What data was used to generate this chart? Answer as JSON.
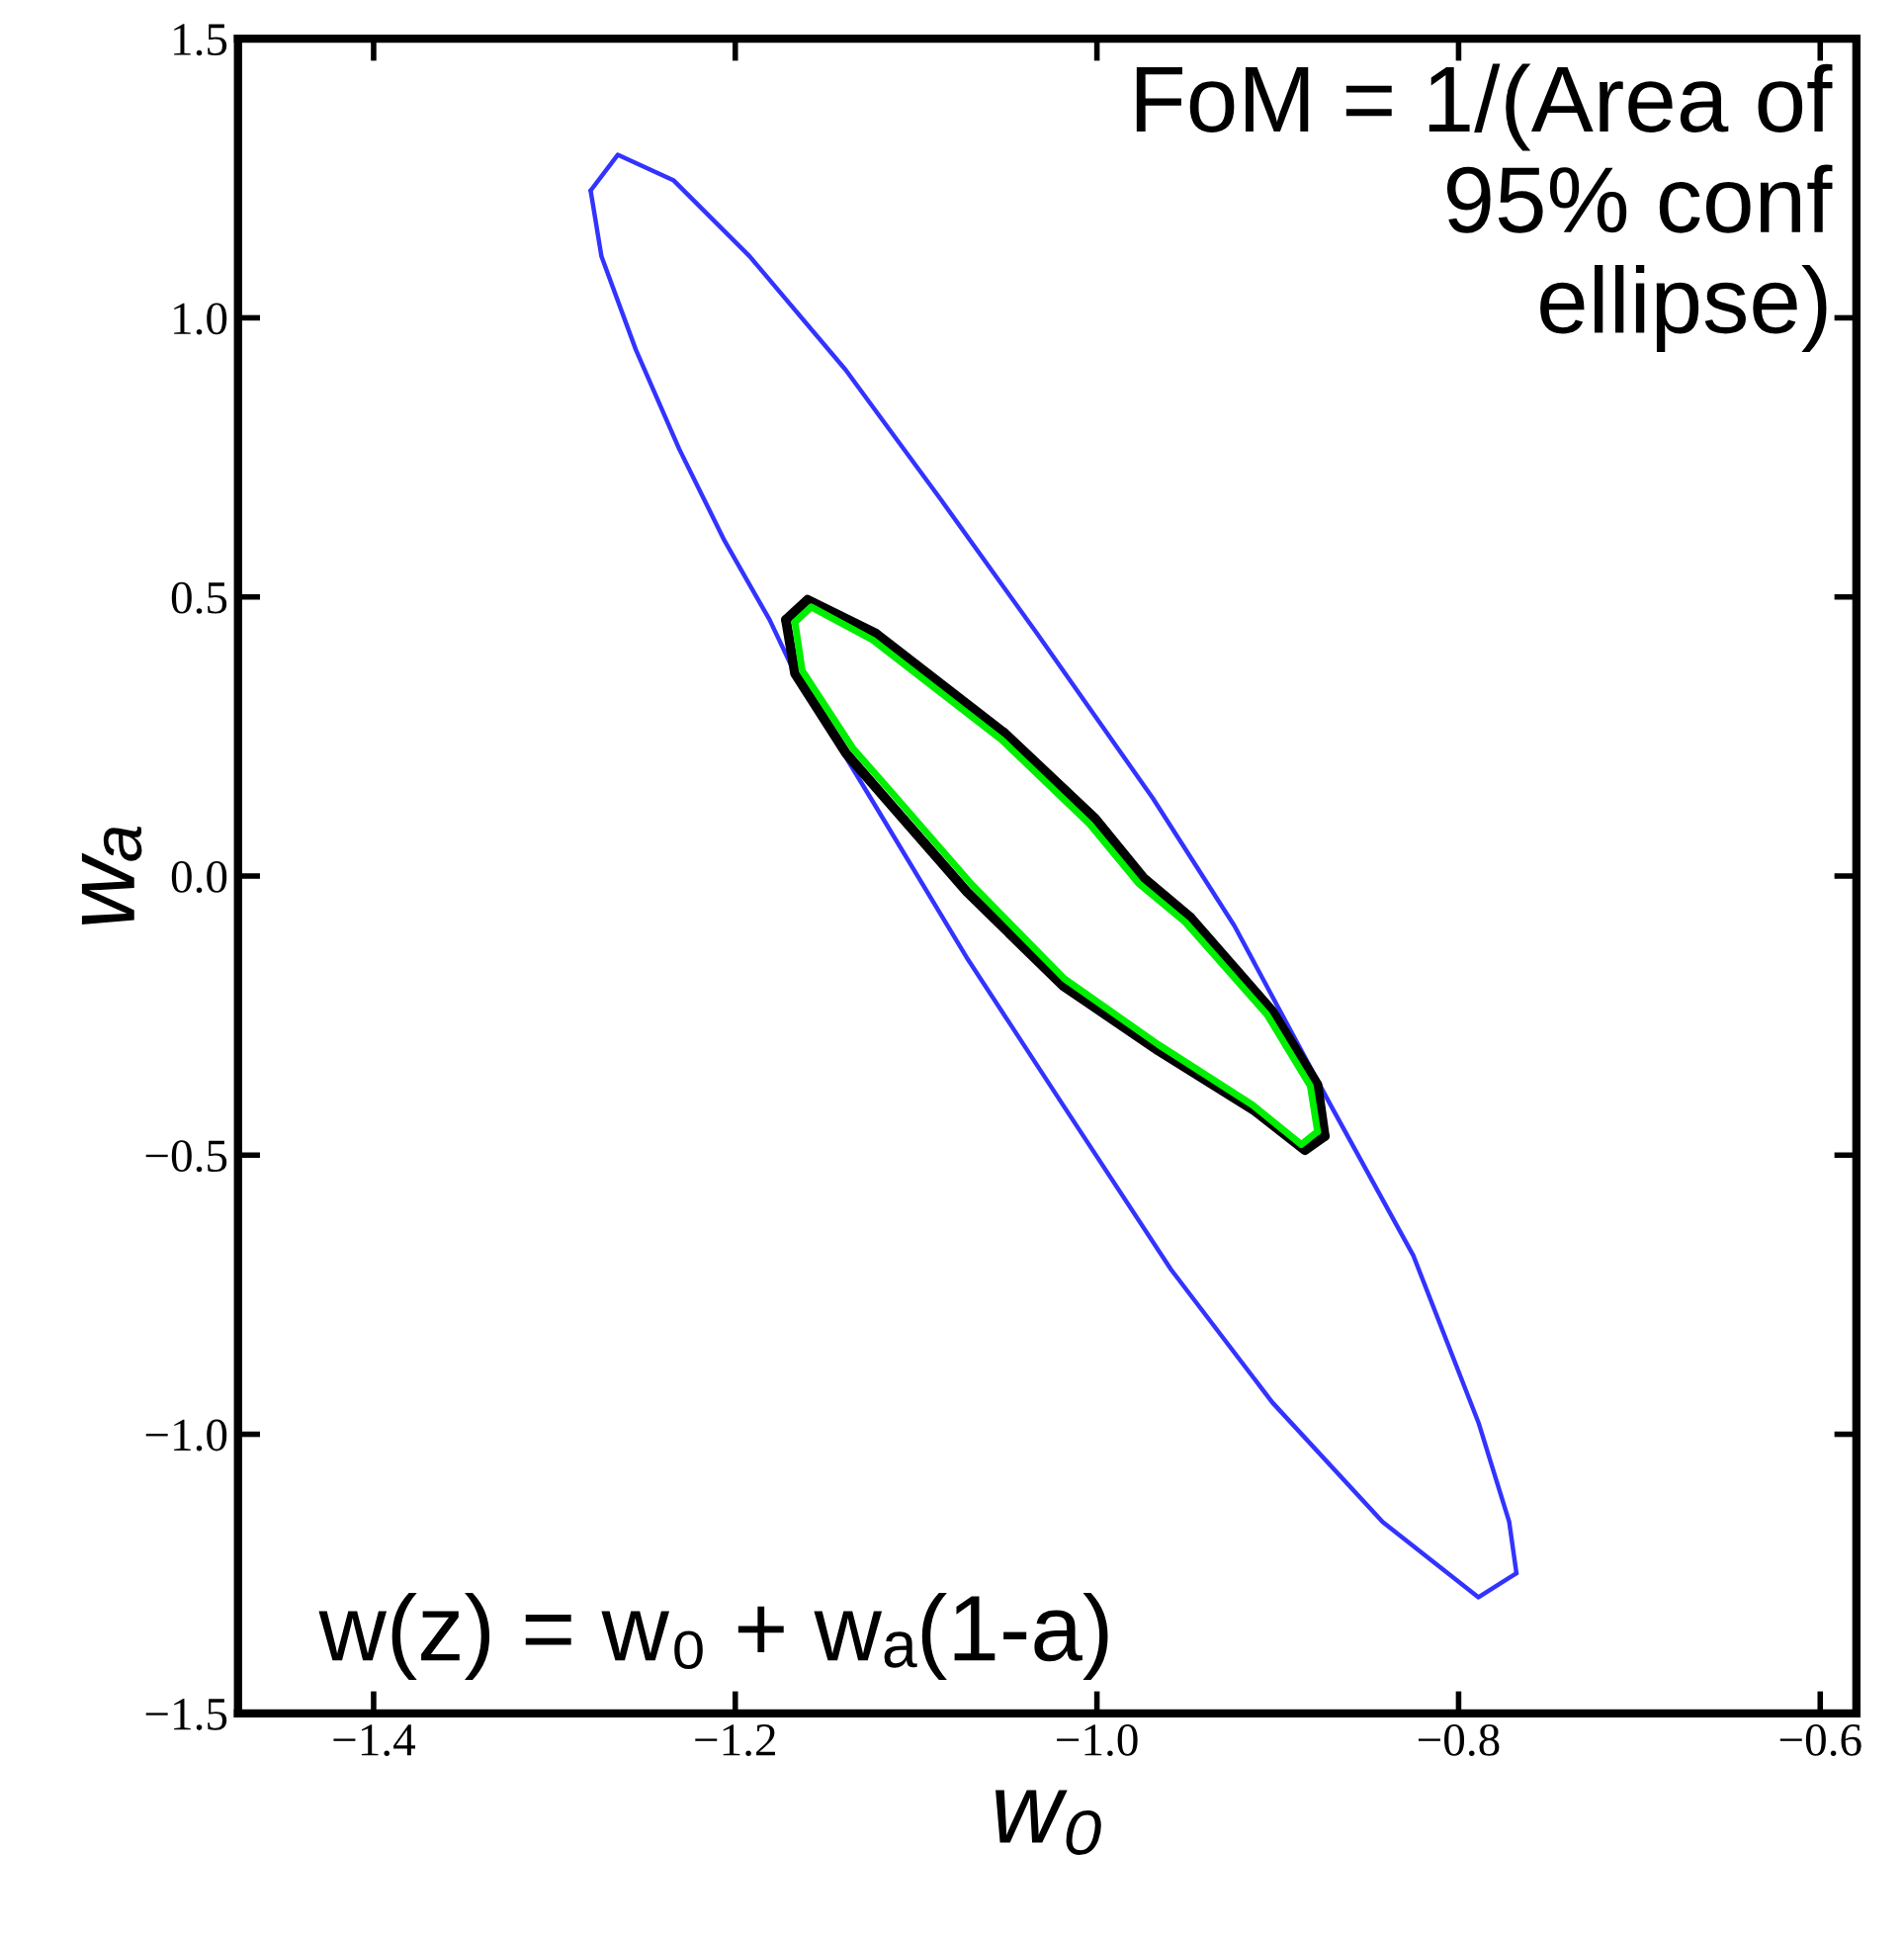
{
  "chart_data": {
    "type": "line",
    "xlabel": "w₀",
    "ylabel": "wₐ",
    "annotations": [
      "FoM = 1/(Area of\n95% conf\nellipse)",
      "w(z) = w₀ + wₐ(1-a)"
    ],
    "xlim": [
      -1.475,
      -0.58
    ],
    "ylim": [
      -1.5,
      1.5
    ],
    "xticks": [
      {
        "value": -1.4,
        "label": "−1.4"
      },
      {
        "value": -1.2,
        "label": "−1.2"
      },
      {
        "value": -1.0,
        "label": "−1.0"
      },
      {
        "value": -0.8,
        "label": "−0.8"
      },
      {
        "value": -0.6,
        "label": "−0.6"
      }
    ],
    "yticks": [
      {
        "value": -1.5,
        "label": "−1.5"
      },
      {
        "value": -1.0,
        "label": "−1.0"
      },
      {
        "value": -0.5,
        "label": "−0.5"
      },
      {
        "value": 0.0,
        "label": "0.0"
      },
      {
        "value": 0.5,
        "label": "0.5"
      },
      {
        "value": 1.0,
        "label": "1.0"
      },
      {
        "value": 1.5,
        "label": "1.5"
      }
    ],
    "grid": false,
    "marker": "none",
    "line_style": "solid",
    "series": [
      {
        "color": "#3333ff",
        "x": [
          -1.28,
          -1.265,
          -1.234,
          -1.192,
          -1.139,
          -1.086,
          -1.033,
          -0.969,
          -0.924,
          -0.871,
          -0.825,
          -0.789,
          -0.772,
          -0.768
        ],
        "values": [
          1.228,
          1.292,
          1.246,
          1.11,
          0.907,
          0.673,
          0.434,
          0.139,
          -0.089,
          -0.409,
          -0.68,
          -0.979,
          -1.157,
          -1.249
        ]
      },
      {
        "color": "#3333ff",
        "x": [
          -1.28,
          -1.274,
          -1.255,
          -1.231,
          -1.206,
          -1.181,
          -1.167,
          -1.125,
          -1.072,
          -1.019,
          -0.959,
          -0.903,
          -0.842,
          -0.789,
          -0.768
        ],
        "values": [
          1.228,
          1.11,
          0.943,
          0.765,
          0.601,
          0.459,
          0.363,
          0.139,
          -0.146,
          -0.409,
          -0.705,
          -0.943,
          -1.157,
          -1.292,
          -1.249
        ]
      },
      {
        "color": "#00ee00",
        "x": [
          -1.167,
          -1.158,
          -1.124,
          -1.053,
          -1.004,
          -0.977,
          -0.951,
          -0.906,
          -0.882,
          -0.878
        ],
        "values": [
          0.455,
          0.482,
          0.423,
          0.245,
          0.093,
          -0.013,
          -0.083,
          -0.248,
          -0.376,
          -0.458
        ]
      },
      {
        "color": "#00ee00",
        "x": [
          -1.167,
          -1.163,
          -1.135,
          -1.113,
          -1.069,
          -1.018,
          -0.966,
          -0.914,
          -0.887,
          -0.878
        ],
        "values": [
          0.455,
          0.368,
          0.229,
          0.148,
          -0.016,
          -0.184,
          -0.302,
          -0.41,
          -0.481,
          -0.458
        ]
      },
      {
        "color": "#000000",
        "x": [
          -1.172,
          -1.16,
          -1.122,
          -1.051,
          -1.001,
          -0.974,
          -0.948,
          -0.903,
          -0.878,
          -0.874
        ],
        "values": [
          0.459,
          0.495,
          0.434,
          0.256,
          0.103,
          -0.004,
          -0.075,
          -0.242,
          -0.374,
          -0.466
        ]
      },
      {
        "color": "#000000",
        "x": [
          -1.172,
          -1.167,
          -1.139,
          -1.117,
          -1.072,
          -1.019,
          -0.966,
          -0.913,
          -0.885,
          -0.874
        ],
        "values": [
          0.459,
          0.363,
          0.221,
          0.139,
          -0.028,
          -0.196,
          -0.313,
          -0.42,
          -0.491,
          -0.466
        ]
      }
    ]
  }
}
